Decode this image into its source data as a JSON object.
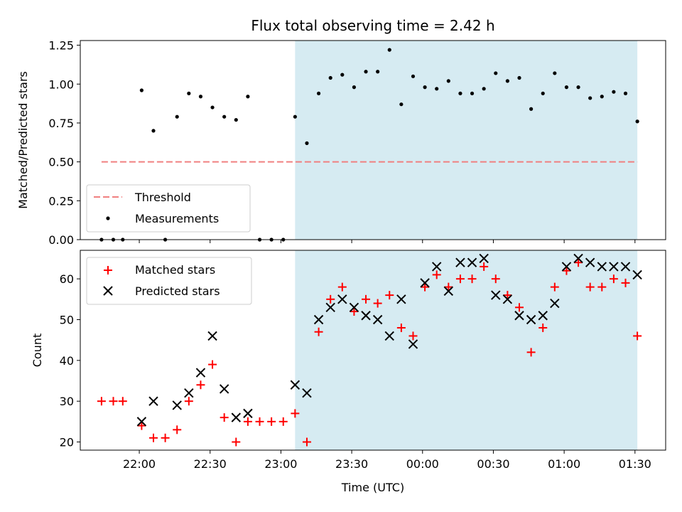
{
  "chart_data": {
    "title": "Flux total observing time = 2.42 h",
    "xlabel": "Time (UTC)",
    "x_ticks": [
      "22:00",
      "22:30",
      "23:00",
      "23:30",
      "00:00",
      "00:30",
      "01:00",
      "01:30"
    ],
    "x_tick_minutes": [
      0,
      30,
      60,
      90,
      120,
      150,
      180,
      210
    ],
    "x_range_minutes": [
      -25,
      223
    ],
    "shaded_region": {
      "start": "23:06",
      "end": "01:31",
      "color": "#add8e6"
    },
    "threshold_color": "#f08080",
    "matched_color": "#ff0000",
    "predicted_color": "#000000",
    "top": {
      "type": "scatter",
      "ylabel": "Matched/Predicted stars",
      "ylim": [
        0,
        1.28
      ],
      "y_ticks": [
        "0.00",
        "0.25",
        "0.50",
        "0.75",
        "1.00",
        "1.25"
      ],
      "threshold": 0.5,
      "legend": [
        {
          "label": "Threshold"
        },
        {
          "label": "Measurements"
        }
      ],
      "times": [
        "21:44",
        "21:49",
        "21:53",
        "22:01",
        "22:06",
        "22:11",
        "22:16",
        "22:21",
        "22:26",
        "22:31",
        "22:36",
        "22:41",
        "22:46",
        "22:51",
        "22:56",
        "23:01",
        "23:06",
        "23:11",
        "23:16",
        "23:21",
        "23:26",
        "23:31",
        "23:36",
        "23:41",
        "23:46",
        "23:51",
        "23:56",
        "00:01",
        "00:06",
        "00:11",
        "00:16",
        "00:21",
        "00:26",
        "00:31",
        "00:36",
        "00:41",
        "00:46",
        "00:51",
        "00:56",
        "01:01",
        "01:06",
        "01:11",
        "01:16",
        "01:21",
        "01:26",
        "01:31"
      ],
      "values": [
        0,
        0,
        0,
        0.96,
        0.7,
        0,
        0.79,
        0.94,
        0.92,
        0.85,
        0.79,
        0.77,
        0.92,
        0,
        0,
        0,
        0.79,
        0.62,
        0.94,
        1.04,
        1.06,
        0.98,
        1.08,
        1.08,
        1.22,
        0.87,
        1.05,
        0.98,
        0.97,
        1.02,
        0.94,
        0.94,
        0.97,
        1.07,
        1.02,
        1.04,
        0.84,
        0.94,
        1.07,
        0.98,
        0.98,
        0.91,
        0.92,
        0.95,
        0.94,
        0.76
      ]
    },
    "bottom": {
      "type": "scatter",
      "ylabel": "Count",
      "ylim": [
        18,
        67
      ],
      "y_ticks": [
        20,
        30,
        40,
        50,
        60
      ],
      "legend": [
        {
          "label": "Matched stars"
        },
        {
          "label": "Predicted stars"
        }
      ],
      "matched": {
        "times": [
          "21:44",
          "21:49",
          "21:53",
          "22:01",
          "22:06",
          "22:11",
          "22:16",
          "22:21",
          "22:26",
          "22:31",
          "22:36",
          "22:41",
          "22:46",
          "22:51",
          "22:56",
          "23:01",
          "23:06",
          "23:11",
          "23:16",
          "23:21",
          "23:26",
          "23:31",
          "23:36",
          "23:41",
          "23:46",
          "23:51",
          "23:56",
          "00:01",
          "00:06",
          "00:11",
          "00:16",
          "00:21",
          "00:26",
          "00:31",
          "00:36",
          "00:41",
          "00:46",
          "00:51",
          "00:56",
          "01:01",
          "01:06",
          "01:11",
          "01:16",
          "01:21",
          "01:26",
          "01:31"
        ],
        "values": [
          30,
          30,
          30,
          24,
          21,
          21,
          23,
          30,
          34,
          39,
          26,
          20,
          25,
          25,
          25,
          25,
          27,
          20,
          47,
          55,
          58,
          52,
          55,
          54,
          56,
          48,
          46,
          58,
          61,
          58,
          60,
          60,
          63,
          60,
          56,
          53,
          42,
          48,
          58,
          62,
          64,
          58,
          58,
          60,
          59,
          46
        ]
      },
      "predicted": {
        "times": [
          "22:01",
          "22:06",
          "22:16",
          "22:21",
          "22:26",
          "22:31",
          "22:36",
          "22:41",
          "22:46",
          "23:06",
          "23:11",
          "23:16",
          "23:21",
          "23:26",
          "23:31",
          "23:36",
          "23:41",
          "23:46",
          "23:51",
          "23:56",
          "00:01",
          "00:06",
          "00:11",
          "00:16",
          "00:21",
          "00:26",
          "00:31",
          "00:36",
          "00:41",
          "00:46",
          "00:51",
          "00:56",
          "01:01",
          "01:06",
          "01:11",
          "01:16",
          "01:21",
          "01:26",
          "01:31"
        ],
        "values": [
          25,
          30,
          29,
          32,
          37,
          46,
          33,
          26,
          27,
          34,
          32,
          50,
          53,
          55,
          53,
          51,
          50,
          46,
          55,
          44,
          59,
          63,
          57,
          64,
          64,
          65,
          56,
          55,
          51,
          50,
          51,
          54,
          63,
          65,
          64,
          63,
          63,
          63,
          61
        ]
      }
    }
  }
}
